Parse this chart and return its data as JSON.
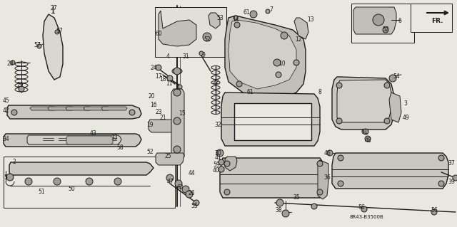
{
  "bg_color": "#f5f5f0",
  "fg_color": "#1a1a1a",
  "diagram_label": "8R43-B3500B",
  "figsize": [
    6.4,
    3.19
  ],
  "dpi": 100
}
